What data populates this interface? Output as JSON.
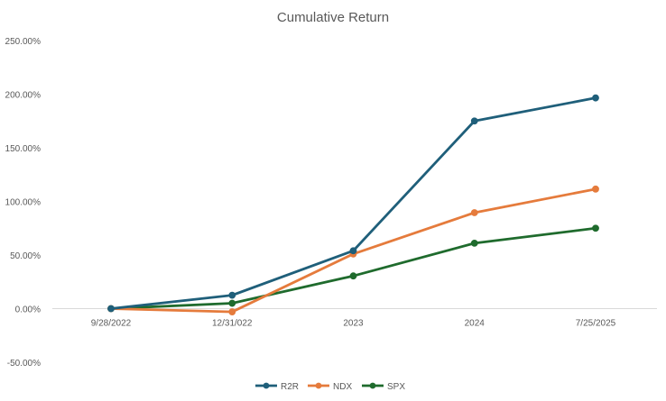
{
  "chart_data": {
    "type": "line",
    "title": "Cumulative Return",
    "xlabel": "",
    "ylabel": "",
    "categories": [
      "9/28/2022",
      "12/31/022",
      "2023",
      "2024",
      "7/25/2025"
    ],
    "ylim": [
      -50,
      250
    ],
    "yticks": [
      -50,
      0,
      50,
      100,
      150,
      200,
      250
    ],
    "ytick_labels": [
      "-50.00%",
      "0.00%",
      "50.00%",
      "100.00%",
      "150.00%",
      "200.00%",
      "250.00%"
    ],
    "grid": false,
    "legend": "bottom-center",
    "series": [
      {
        "name": "R2R",
        "color": "#1f5f7a",
        "values": [
          0,
          12.5,
          54,
          175,
          196.5
        ]
      },
      {
        "name": "NDX",
        "color": "#e57b3c",
        "values": [
          0,
          -3,
          51,
          89.5,
          111.5
        ]
      },
      {
        "name": "SPX",
        "color": "#1f6b2d",
        "values": [
          0,
          5,
          30.5,
          61,
          75
        ]
      }
    ]
  }
}
